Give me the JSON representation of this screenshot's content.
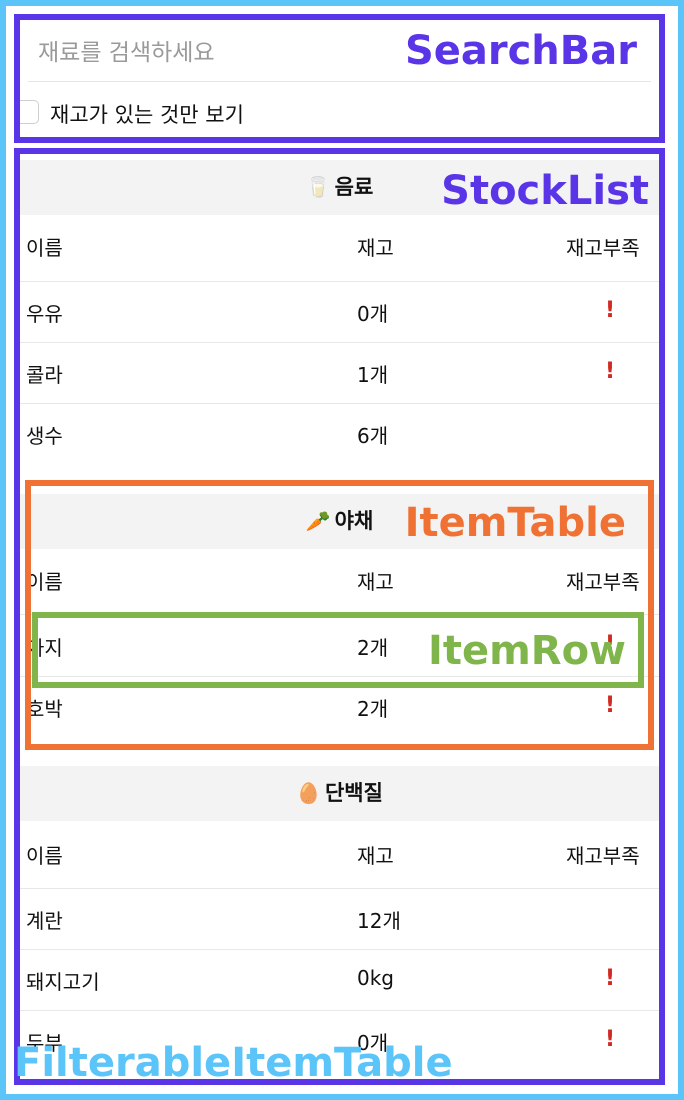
{
  "search": {
    "placeholder": "재료를 검색하세요",
    "checkbox_label": "재고가 있는 것만 보기"
  },
  "labels": {
    "searchbar": "SearchBar",
    "stocklist": "StockList",
    "itemtable": "ItemTable",
    "itemrow": "ItemRow",
    "filterable": "FilterableItemTable"
  },
  "columns": {
    "name": "이름",
    "stock": "재고",
    "low": "재고부족"
  },
  "categories": [
    {
      "emoji": "🥛",
      "name": "음료",
      "items": [
        {
          "name": "우유",
          "stock": "0개",
          "low": "!"
        },
        {
          "name": "콜라",
          "stock": "1개",
          "low": "!"
        },
        {
          "name": "생수",
          "stock": "6개",
          "low": ""
        }
      ]
    },
    {
      "emoji": "🥕",
      "name": "야채",
      "items": [
        {
          "name": "가지",
          "stock": "2개",
          "low": "!"
        },
        {
          "name": "호박",
          "stock": "2개",
          "low": "!"
        }
      ]
    },
    {
      "emoji": "🥚",
      "name": "단백질",
      "items": [
        {
          "name": "계란",
          "stock": "12개",
          "low": ""
        },
        {
          "name": "돼지고기",
          "stock": "0kg",
          "low": "!"
        },
        {
          "name": "두부",
          "stock": "0개",
          "low": "!"
        }
      ]
    }
  ],
  "colors": {
    "searchbar": "#5a35e8",
    "itemtable": "#ef7234",
    "itemrow": "#7fb54a",
    "filterable": "#5bc4f8",
    "warning": "#d02a23"
  }
}
